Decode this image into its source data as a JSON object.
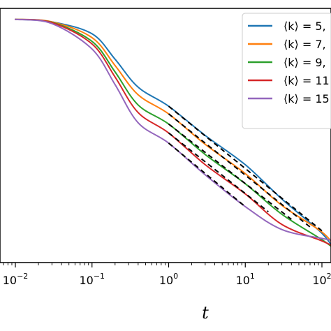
{
  "chart_data": {
    "type": "line",
    "title": "",
    "xlabel": "t",
    "ylabel": "",
    "x_scale": "log",
    "xlim": [
      0.0068,
      160
    ],
    "x_ticks": [
      {
        "value": 0.01,
        "base": "10",
        "exp": "−2"
      },
      {
        "value": 0.1,
        "base": "10",
        "exp": "−1"
      },
      {
        "value": 1,
        "base": "10",
        "exp": "0"
      },
      {
        "value": 10,
        "base": "10",
        "exp": "1"
      },
      {
        "value": 100,
        "base": "10",
        "exp": "2"
      }
    ],
    "y_tick_labels_visible": false,
    "legend_placement": "upper right",
    "series": [
      {
        "name": "⟨k⟩ = 5,",
        "color": "#1f77b4",
        "points": [
          [
            0.01,
            0.957
          ],
          [
            0.03,
            0.947
          ],
          [
            0.1,
            0.9
          ],
          [
            0.2,
            0.8
          ],
          [
            0.4,
            0.69
          ],
          [
            1,
            0.615
          ],
          [
            3,
            0.5
          ],
          [
            10,
            0.385
          ],
          [
            30,
            0.25
          ],
          [
            100,
            0.115
          ],
          [
            150,
            0.04
          ]
        ]
      },
      {
        "name": "⟨k⟩ = 7,",
        "color": "#ff7f0e",
        "points": [
          [
            0.01,
            0.957
          ],
          [
            0.03,
            0.947
          ],
          [
            0.1,
            0.885
          ],
          [
            0.2,
            0.775
          ],
          [
            0.4,
            0.66
          ],
          [
            1,
            0.585
          ],
          [
            3,
            0.465
          ],
          [
            10,
            0.35
          ],
          [
            30,
            0.225
          ],
          [
            100,
            0.12
          ],
          [
            150,
            0.06
          ]
        ]
      },
      {
        "name": "⟨k⟩ = 9,",
        "color": "#2ca02c",
        "points": [
          [
            0.01,
            0.957
          ],
          [
            0.03,
            0.945
          ],
          [
            0.1,
            0.87
          ],
          [
            0.2,
            0.75
          ],
          [
            0.4,
            0.62
          ],
          [
            1,
            0.545
          ],
          [
            3,
            0.425
          ],
          [
            10,
            0.31
          ],
          [
            30,
            0.19
          ],
          [
            100,
            0.09
          ],
          [
            150,
            0.05
          ]
        ]
      },
      {
        "name": "⟨k⟩ = 11",
        "color": "#d62728",
        "points": [
          [
            0.01,
            0.957
          ],
          [
            0.03,
            0.944
          ],
          [
            0.1,
            0.86
          ],
          [
            0.2,
            0.73
          ],
          [
            0.4,
            0.59
          ],
          [
            1,
            0.51
          ],
          [
            3,
            0.385
          ],
          [
            10,
            0.27
          ],
          [
            30,
            0.15
          ],
          [
            100,
            0.085
          ],
          [
            150,
            0.06
          ]
        ]
      },
      {
        "name": "⟨k⟩ = 15",
        "color": "#9467bd",
        "points": [
          [
            0.01,
            0.957
          ],
          [
            0.03,
            0.94
          ],
          [
            0.1,
            0.84
          ],
          [
            0.2,
            0.7
          ],
          [
            0.4,
            0.55
          ],
          [
            1,
            0.47
          ],
          [
            3,
            0.345
          ],
          [
            10,
            0.22
          ],
          [
            30,
            0.13
          ],
          [
            100,
            0.095
          ],
          [
            150,
            0.085
          ]
        ]
      }
    ],
    "fits": [
      {
        "style": "dashed",
        "color": "#000000",
        "points": [
          [
            1,
            0.615
          ],
          [
            100,
            0.125
          ]
        ]
      },
      {
        "style": "dashed",
        "color": "#000000",
        "points": [
          [
            1,
            0.585
          ],
          [
            70,
            0.14
          ]
        ]
      },
      {
        "style": "dashed",
        "color": "#000000",
        "points": [
          [
            1,
            0.545
          ],
          [
            40,
            0.17
          ]
        ]
      },
      {
        "style": "dashed",
        "color": "#000000",
        "points": [
          [
            1,
            0.51
          ],
          [
            20,
            0.2
          ]
        ]
      },
      {
        "style": "dashed",
        "color": "#000000",
        "points": [
          [
            1,
            0.47
          ],
          [
            10,
            0.22
          ]
        ]
      }
    ]
  }
}
